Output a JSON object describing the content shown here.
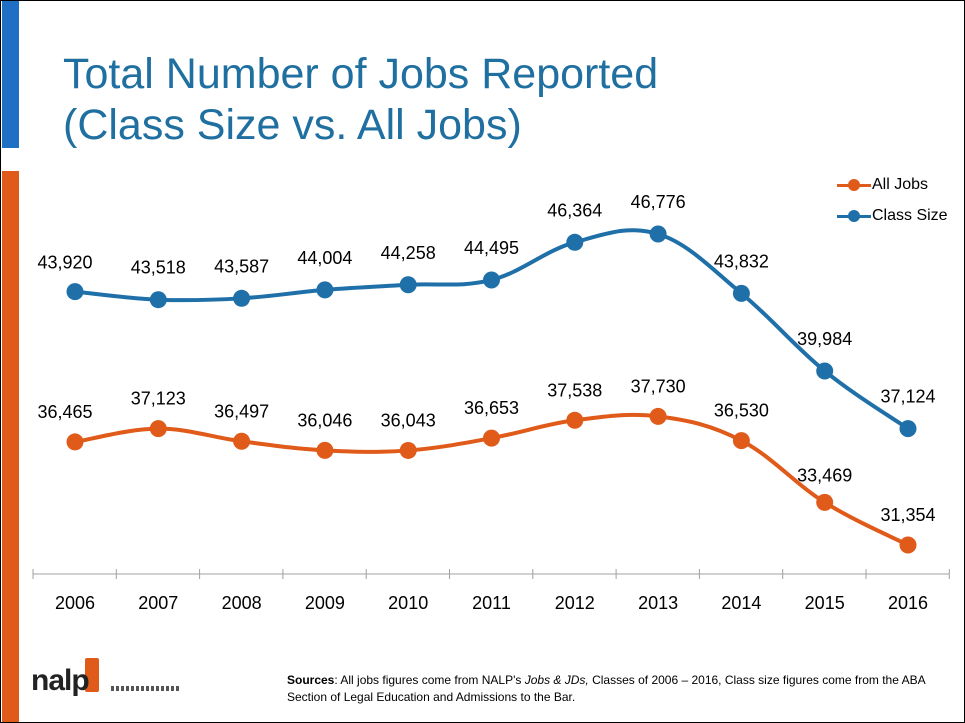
{
  "slide": {
    "title_line1": "Total Number of Jobs Reported",
    "title_line2": "(Class Size vs. All Jobs)"
  },
  "sources": {
    "label": "Sources",
    "text1": ": All jobs figures come from NALP's ",
    "italic": "Jobs & JDs,",
    "text2": " Classes of 2006 – 2016, Class size figures come from the ABA Section of Legal Education and Admissions to the Bar."
  },
  "logo": {
    "text": "nalp"
  },
  "colors": {
    "all_jobs": "#e05a1a",
    "class_size": "#1f6fa8",
    "title": "#1f6fa0",
    "accent_blue": "#1f6fc5"
  },
  "chart_data": {
    "type": "line",
    "title": "Total Number of Jobs Reported (Class Size vs. All Jobs)",
    "categories": [
      "2006",
      "2007",
      "2008",
      "2009",
      "2010",
      "2011",
      "2012",
      "2013",
      "2014",
      "2015",
      "2016"
    ],
    "series": [
      {
        "name": "All Jobs",
        "color": "#e05a1a",
        "values": [
          36465,
          37123,
          36497,
          36046,
          36043,
          36653,
          37538,
          37730,
          36530,
          33469,
          31354
        ],
        "labels": [
          "36,465",
          "37,123",
          "36,497",
          "36,046",
          "36,043",
          "36,653",
          "37,538",
          "37,730",
          "36,530",
          "33,469",
          "31,354"
        ]
      },
      {
        "name": "Class Size",
        "color": "#1f6fa8",
        "values": [
          43920,
          43518,
          43587,
          44004,
          44258,
          44495,
          46364,
          46776,
          43832,
          39984,
          37124
        ],
        "labels": [
          "43,920",
          "43,518",
          "43,587",
          "44,004",
          "44,258",
          "44,495",
          "46,364",
          "46,776",
          "43,832",
          "39,984",
          "37,124"
        ]
      }
    ],
    "ylim": [
      28000,
      50000
    ],
    "grid": false,
    "legend": "top-right",
    "xlabel": "",
    "ylabel": ""
  }
}
